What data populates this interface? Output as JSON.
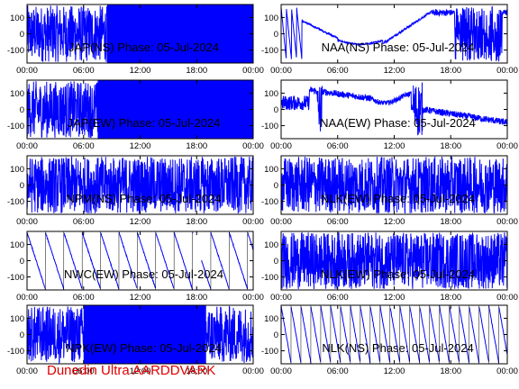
{
  "footer_text": "Dunedin Ultra AARDDVARK",
  "colors": {
    "trace": "#0000ff",
    "axis": "#000000",
    "footer": "#e00000",
    "background": "#ffffff"
  },
  "chart_data": [
    {
      "type": "line",
      "title": "JAP(NS) Phase: 05-Jul-2024",
      "xlabel": "",
      "ylabel": "",
      "x_ticks": [
        "00:00",
        "06:00",
        "12:00",
        "18:00",
        "00:00"
      ],
      "y_ticks": [
        "100",
        "0",
        "-100"
      ],
      "xlim": [
        0,
        24
      ],
      "ylim": [
        -180,
        180
      ],
      "pattern": "dense_then_saturated",
      "saturated_range": [
        8.5,
        24
      ]
    },
    {
      "type": "line",
      "title": "NAA(NS) Phase: 05-Jul-2024",
      "xlabel": "",
      "ylabel": "",
      "x_ticks": [
        "00:00",
        "06:00",
        "12:00",
        "18:00",
        "00:00"
      ],
      "y_ticks": [
        "100",
        "0",
        "-100"
      ],
      "xlim": [
        0,
        24
      ],
      "ylim": [
        -180,
        180
      ],
      "pattern": "naa_ns"
    },
    {
      "type": "line",
      "title": "JAP(EW) Phase: 05-Jul-2024",
      "xlabel": "",
      "ylabel": "",
      "x_ticks": [
        "00:00",
        "06:00",
        "12:00",
        "18:00",
        "00:00"
      ],
      "y_ticks": [
        "100",
        "0",
        "-100"
      ],
      "xlim": [
        0,
        24
      ],
      "ylim": [
        -180,
        180
      ],
      "pattern": "dense_then_saturated",
      "saturated_range": [
        7.5,
        24
      ]
    },
    {
      "type": "line",
      "title": "NAA(EW) Phase: 05-Jul-2024",
      "xlabel": "",
      "ylabel": "",
      "x_ticks": [
        "00:00",
        "06:00",
        "12:00",
        "18:00",
        "00:00"
      ],
      "y_ticks": [
        "100",
        "0",
        "-100"
      ],
      "xlim": [
        0,
        24
      ],
      "ylim": [
        -180,
        180
      ],
      "pattern": "naa_ew"
    },
    {
      "type": "line",
      "title": "NPM(NS) Phase: 05-Jul-2024",
      "xlabel": "",
      "ylabel": "",
      "x_ticks": [
        "00:00",
        "06:00",
        "12:00",
        "18:00",
        "00:00"
      ],
      "y_ticks": [
        "100",
        "0",
        "-100"
      ],
      "xlim": [
        0,
        24
      ],
      "ylim": [
        -180,
        180
      ],
      "pattern": "dense"
    },
    {
      "type": "line",
      "title": "NLK(EW) Phase: 05-Jul-2024",
      "xlabel": "",
      "ylabel": "",
      "x_ticks": [
        "00:00",
        "06:00",
        "12:00",
        "18:00",
        "00:00"
      ],
      "y_ticks": [
        "100",
        "0",
        "-100"
      ],
      "xlim": [
        0,
        24
      ],
      "ylim": [
        -180,
        180
      ],
      "pattern": "dense"
    },
    {
      "type": "line",
      "title": "NWC(EW) Phase: 05-Jul-2024",
      "xlabel": "",
      "ylabel": "",
      "x_ticks": [
        "00:00",
        "06:00",
        "12:00",
        "18:00",
        "00:00"
      ],
      "y_ticks": [
        "100",
        "0",
        "-100"
      ],
      "xlim": [
        0,
        24
      ],
      "ylim": [
        -180,
        180
      ],
      "pattern": "sawtooth",
      "wrap_period_hours": 1.95,
      "gap": [
        17.6,
        18.5
      ]
    },
    {
      "type": "line",
      "title": "NLK(EW) Phase: 05-Jul-2024",
      "xlabel": "",
      "ylabel": "",
      "x_ticks": [
        "00:00",
        "06:00",
        "12:00",
        "18:00",
        "00:00"
      ],
      "y_ticks": [
        "100",
        "0",
        "-100"
      ],
      "xlim": [
        0,
        24
      ],
      "ylim": [
        -180,
        180
      ],
      "pattern": "dense"
    },
    {
      "type": "line",
      "title": "NPK(EW) Phase: 05-Jul-2024",
      "xlabel": "",
      "ylabel": "",
      "x_ticks": [
        "00:00",
        "06:00",
        "12:00",
        "18:00",
        "00:00"
      ],
      "y_ticks": [
        "100",
        "0",
        "-100"
      ],
      "xlim": [
        0,
        24
      ],
      "ylim": [
        -180,
        180
      ],
      "pattern": "dense_then_saturated",
      "saturated_range": [
        6,
        19
      ]
    },
    {
      "type": "line",
      "title": "NLK(NS) Phase: 05-Jul-2024",
      "xlabel": "",
      "ylabel": "",
      "x_ticks": [
        "00:00",
        "06:00",
        "12:00",
        "18:00",
        "00:00"
      ],
      "y_ticks": [
        "100",
        "0",
        "-100"
      ],
      "xlim": [
        0,
        24
      ],
      "ylim": [
        -180,
        180
      ],
      "pattern": "sawtooth",
      "wrap_period_hours": 1.05,
      "gap": null
    }
  ]
}
